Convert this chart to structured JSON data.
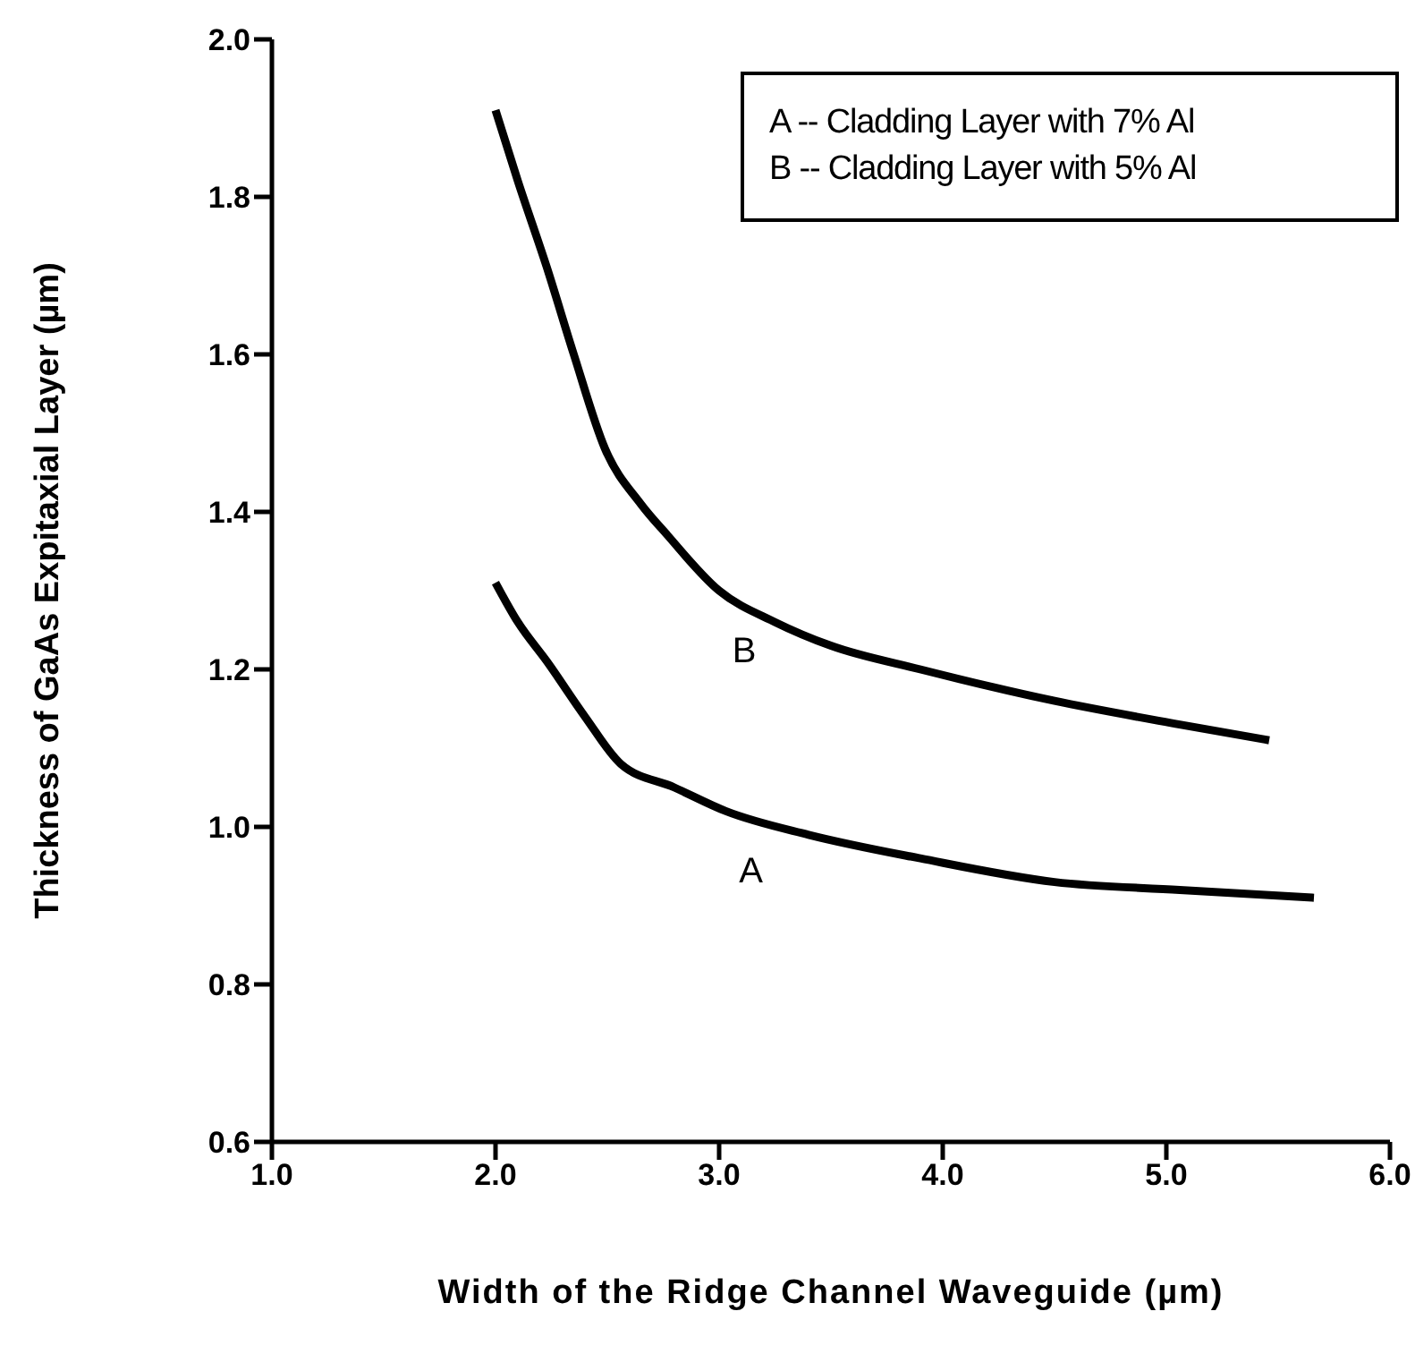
{
  "chart_data": {
    "type": "line",
    "xlabel": "Width of the Ridge Channel Waveguide (µm)",
    "ylabel": "Thickness of GaAs Expitaxial Layer (µm)",
    "xlim": [
      1.0,
      6.0
    ],
    "xticks": [
      {
        "value": 1,
        "label": "1.0"
      },
      {
        "value": 2,
        "label": "2.0"
      },
      {
        "value": 3,
        "label": "3.0"
      },
      {
        "value": 4,
        "label": "4.0"
      },
      {
        "value": 5,
        "label": "5.0"
      },
      {
        "value": 6,
        "label": "6.0"
      }
    ],
    "ylim": [
      0.6,
      2.0
    ],
    "yticks": [
      {
        "value": 0.6,
        "label": "0.6"
      },
      {
        "value": 0.8,
        "label": "0.8"
      },
      {
        "value": 1,
        "label": "1.0"
      },
      {
        "value": 1.2,
        "label": "1.2"
      },
      {
        "value": 1.4,
        "label": "1.4"
      },
      {
        "value": 1.6,
        "label": "1.6"
      },
      {
        "value": 1.8,
        "label": "1.8"
      },
      {
        "value": 2,
        "label": "2.0"
      }
    ],
    "marker": "none",
    "grid": false,
    "series": [
      {
        "name": "A",
        "color": "#000000",
        "x": [
          2.0,
          2.1,
          2.23,
          2.4,
          2.56,
          2.8,
          3.03,
          3.4,
          3.9,
          4.5,
          5.06,
          5.66
        ],
        "values": [
          1.31,
          1.26,
          1.21,
          1.14,
          1.08,
          1.05,
          1.02,
          0.99,
          0.96,
          0.93,
          0.92,
          0.91
        ]
      },
      {
        "name": "B",
        "color": "#000000",
        "x": [
          2.0,
          2.1,
          2.23,
          2.35,
          2.49,
          2.65,
          2.77,
          3.0,
          3.25,
          3.5,
          3.9,
          4.5,
          5.06,
          5.46
        ],
        "values": [
          1.91,
          1.82,
          1.71,
          1.6,
          1.48,
          1.41,
          1.37,
          1.3,
          1.26,
          1.23,
          1.2,
          1.16,
          1.13,
          1.11
        ]
      }
    ],
    "annotations": [
      "A -- Cladding Layer with 7% Al",
      "B -- Cladding Layer with 5% Al"
    ]
  }
}
